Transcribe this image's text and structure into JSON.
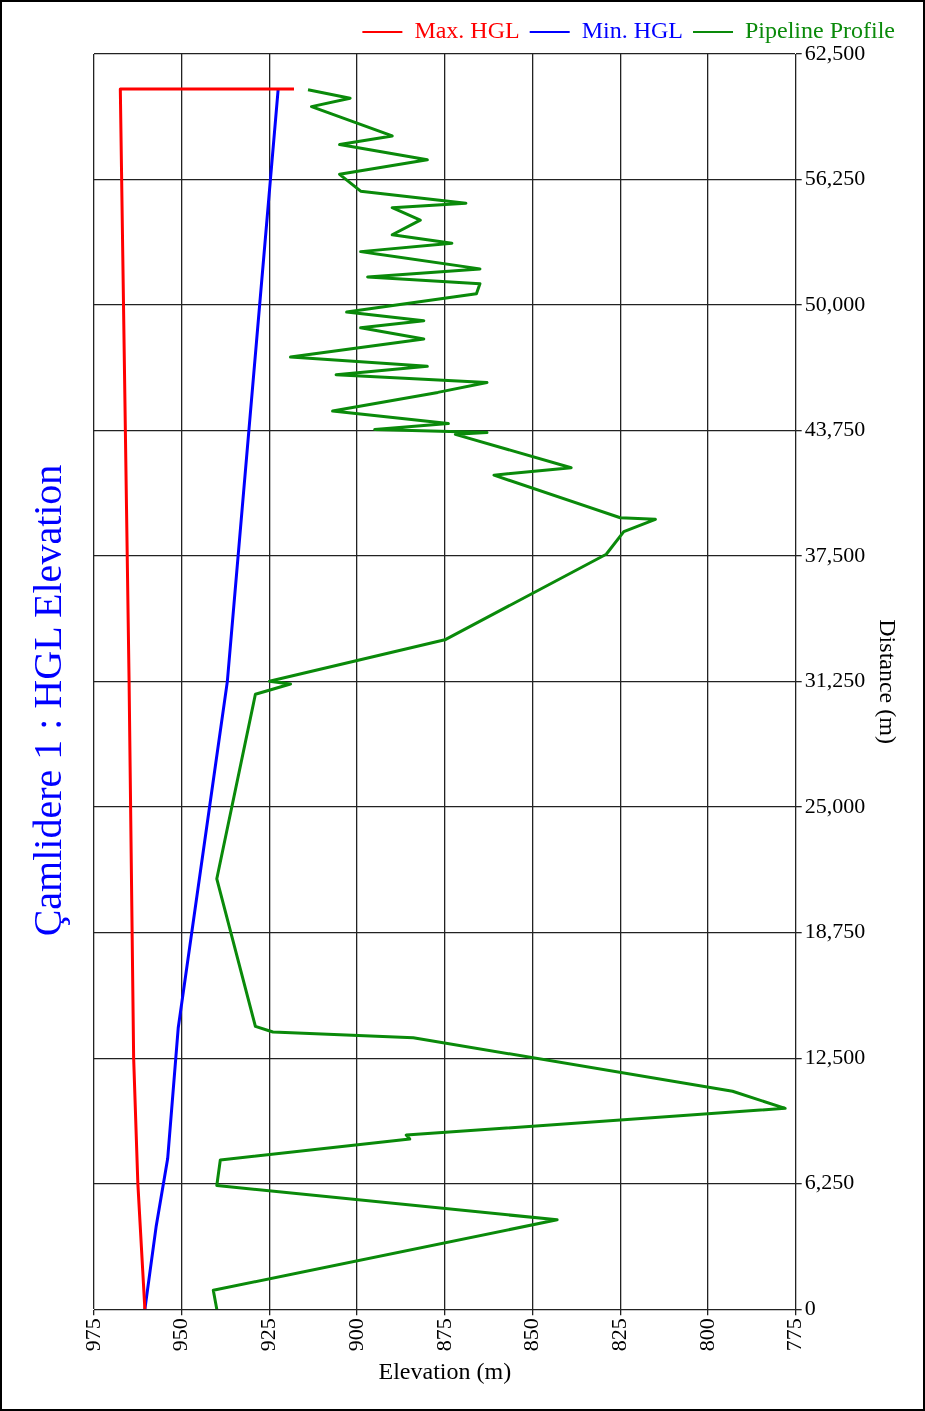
{
  "chart_data": {
    "type": "line",
    "title": "Çamlidere 1 : HGL Elevation",
    "xlabel": "Elevation (m)",
    "ylabel": "Distance (m)",
    "ylim": [
      0,
      62500
    ],
    "yticks": [
      0,
      {
        "value": 6250,
        "label": "6,250"
      },
      {
        "value": 12500,
        "label": "12,500"
      },
      {
        "value": 18750,
        "label": "18,750"
      },
      {
        "value": 25000,
        "label": "25,000"
      },
      {
        "value": 31250,
        "label": "31,250"
      },
      {
        "value": 37500,
        "label": "37,500"
      },
      {
        "value": 43750,
        "label": "43,750"
      },
      {
        "value": 50000,
        "label": "50,000"
      },
      {
        "value": 56250,
        "label": "56,250"
      },
      {
        "value": 62500,
        "label": "62,500"
      }
    ],
    "xlim": [
      975,
      775
    ],
    "xticks": [
      975,
      950,
      925,
      900,
      875,
      850,
      825,
      800,
      775
    ],
    "grid": true,
    "legend": "top right",
    "marker": "none",
    "line_style": "solid",
    "series": [
      {
        "name": "Max. HGL",
        "color": "#ff0000",
        "values": [
          0,
          6250,
          12500,
          31250,
          60760,
          60760
        ],
        "x": [
          960.5,
          962.5,
          963.7,
          965,
          967.5,
          918
        ]
      },
      {
        "name": "Min. HGL",
        "color": "#0000ff",
        "values": [
          0,
          4100,
          7500,
          14000,
          31250,
          60760
        ],
        "x": [
          960.5,
          957.3,
          954,
          951,
          937,
          922.5
        ]
      },
      {
        "name": "Pipeline Profile",
        "color": "#0a8a0a",
        "values": [
          0,
          940,
          4450,
          6160,
          7430,
          8470,
          8670,
          10000,
          10850,
          13520,
          13800,
          14080,
          21430,
          30620,
          31130,
          31270,
          33330,
          37590,
          38720,
          39330,
          39410,
          41530,
          41900,
          43560,
          43650,
          43800,
          44100,
          44720,
          45650,
          46140,
          46530,
          46950,
          47410,
          48310,
          48870,
          49220,
          49650,
          50560,
          51060,
          51400,
          51800,
          52660,
          53080,
          53500,
          54230,
          54850,
          55070,
          55670,
          56510,
          57230,
          57990,
          58420,
          59880,
          60300,
          60720
        ],
        "x": [
          940,
          941,
          843,
          940,
          939,
          885,
          886,
          778,
          793,
          884,
          924,
          929,
          940,
          929,
          919,
          925,
          875,
          829,
          824,
          815,
          825,
          861,
          839,
          872,
          863,
          895,
          874,
          907,
          877,
          863,
          906,
          880,
          919,
          881,
          899,
          881,
          903,
          866,
          865,
          897,
          865,
          899,
          873,
          890,
          882,
          890,
          869,
          899,
          905,
          880,
          905,
          890,
          913,
          902,
          914
        ]
      }
    ]
  }
}
